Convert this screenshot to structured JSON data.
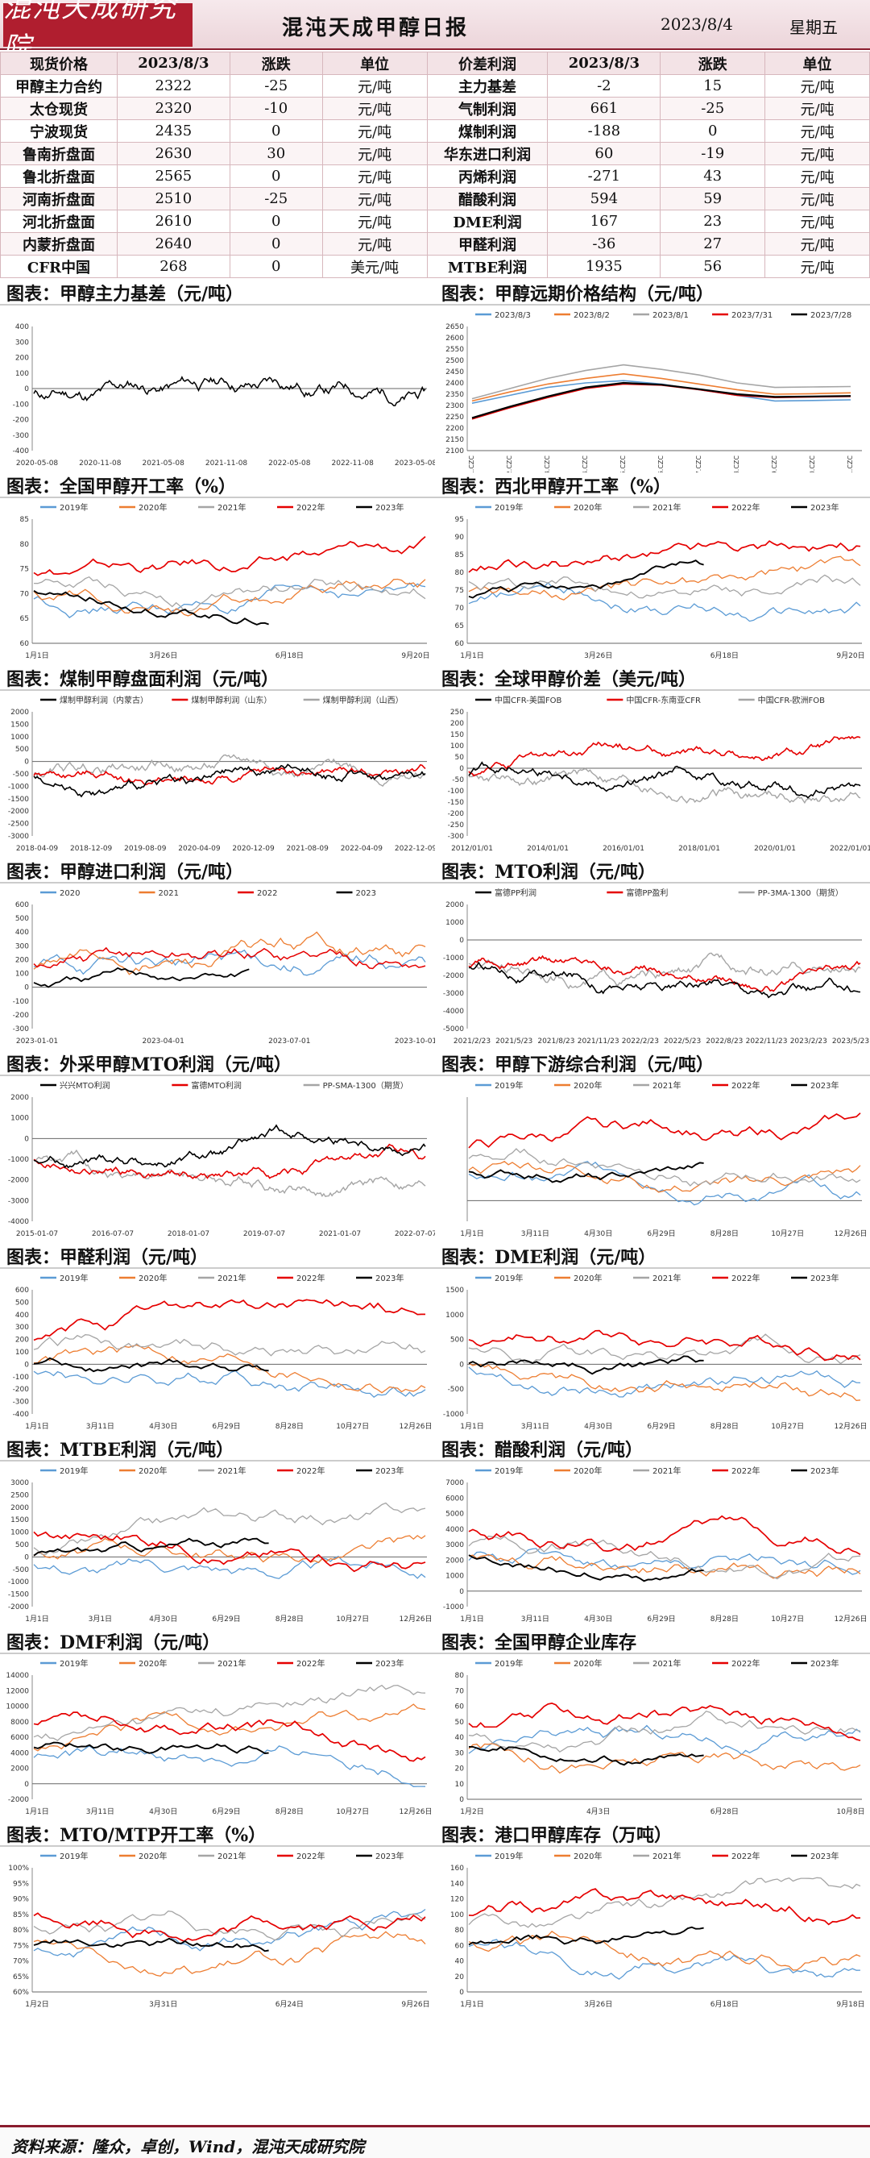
{
  "header": {
    "logo": "混沌天成研究院",
    "title": "混沌天成甲醇日报",
    "date": "2023/8/4",
    "weekday": "星期五"
  },
  "table": {
    "headers": [
      "现货价格",
      "2023/8/3",
      "涨跌",
      "单位",
      "价差利润",
      "2023/8/3",
      "涨跌",
      "单位"
    ],
    "rows": [
      [
        "甲醇主力合约",
        "2322",
        "-25",
        "元/吨",
        "主力基差",
        "-2",
        "15",
        "元/吨"
      ],
      [
        "太仓现货",
        "2320",
        "-10",
        "元/吨",
        "气制利润",
        "661",
        "-25",
        "元/吨"
      ],
      [
        "宁波现货",
        "2435",
        "0",
        "元/吨",
        "煤制利润",
        "-188",
        "0",
        "元/吨"
      ],
      [
        "鲁南折盘面",
        "2630",
        "30",
        "元/吨",
        "华东进口利润",
        "60",
        "-19",
        "元/吨"
      ],
      [
        "鲁北折盘面",
        "2565",
        "0",
        "元/吨",
        "丙烯利润",
        "-271",
        "43",
        "元/吨"
      ],
      [
        "河南折盘面",
        "2510",
        "-25",
        "元/吨",
        "醋酸利润",
        "594",
        "59",
        "元/吨"
      ],
      [
        "河北折盘面",
        "2610",
        "0",
        "元/吨",
        "DME利润",
        "167",
        "23",
        "元/吨"
      ],
      [
        "内蒙折盘面",
        "2640",
        "0",
        "元/吨",
        "甲醛利润",
        "-36",
        "27",
        "元/吨"
      ],
      [
        "CFR中国",
        "268",
        "0",
        "美元/吨",
        "MTBE利润",
        "1935",
        "56",
        "元/吨"
      ]
    ]
  },
  "colors": {
    "c2019": "#5b9bd5",
    "c2020": "#ed7d31",
    "c2021": "#a5a5a5",
    "c2022": "#e50000",
    "c2023": "#000000"
  },
  "year_legend": [
    "2019年",
    "2020年",
    "2021年",
    "2022年",
    "2023年"
  ],
  "panels": [
    {
      "title": "图表：甲醇主力基差（元/吨）",
      "type": "single",
      "legend": [],
      "ylim": [
        -400,
        400
      ],
      "yticks": [
        "400",
        "300",
        "200",
        "100",
        "0",
        "-100",
        "-200",
        "-300",
        "-400"
      ],
      "xticks": [
        "2020-05-08",
        "2020-11-08",
        "2021-05-08",
        "2021-11-08",
        "2022-05-08",
        "2022-11-08",
        "2023-05-08"
      ]
    },
    {
      "title": "图表：甲醇远期价格结构（元/吨）",
      "type": "curve",
      "legend": [
        "2023/8/3",
        "2023/8/2",
        "2023/8/1",
        "2023/7/31",
        "2023/7/28"
      ],
      "ylim": [
        2100,
        2650
      ],
      "yticks": [
        "2650",
        "2600",
        "2550",
        "2500",
        "2450",
        "2400",
        "2350",
        "2300",
        "2250",
        "2200",
        "2150",
        "2100"
      ],
      "xticks": [
        "MA01.CZC",
        "MA02.CZC",
        "MA03.CZC",
        "MA04.CZC",
        "MA05.CZC",
        "MA06.CZC",
        "MA07.CZC",
        "MA08.CZC",
        "MA09.CZC",
        "MA10.CZC",
        "MA11.CZC"
      ],
      "chart_data": {
        "type": "line",
        "categories": [
          "MA01.CZC",
          "MA02.CZC",
          "MA03.CZC",
          "MA04.CZC",
          "MA05.CZC",
          "MA06.CZC",
          "MA07.CZC",
          "MA08.CZC",
          "MA09.CZC",
          "MA10.CZC",
          "MA11.CZC"
        ],
        "series": [
          {
            "name": "2023/8/3",
            "values": [
              2310,
              2345,
              2380,
              2400,
              2410,
              2395,
              2370,
              2345,
              2320,
              2322,
              2325
            ]
          },
          {
            "name": "2023/8/2",
            "values": [
              2320,
              2360,
              2395,
              2420,
              2440,
              2420,
              2395,
              2370,
              2350,
              2352,
              2356
            ]
          },
          {
            "name": "2023/8/1",
            "values": [
              2330,
              2375,
              2420,
              2455,
              2480,
              2460,
              2435,
              2400,
              2380,
              2382,
              2384
            ]
          },
          {
            "name": "2023/7/31",
            "values": [
              2240,
              2290,
              2335,
              2375,
              2395,
              2390,
              2370,
              2345,
              2335,
              2338,
              2340
            ]
          },
          {
            "name": "2023/7/28",
            "values": [
              2245,
              2295,
              2340,
              2380,
              2400,
              2392,
              2372,
              2350,
              2338,
              2340,
              2342
            ]
          }
        ]
      }
    },
    {
      "title": "图表：全国甲醇开工率（%）",
      "type": "years",
      "ylim": [
        60,
        85
      ],
      "yticks": [
        "85",
        "80",
        "75",
        "70",
        "65",
        "60"
      ],
      "xticks": [
        "1月1日",
        "3月26日",
        "6月18日",
        "9月20日"
      ]
    },
    {
      "title": "图表：西北甲醇开工率（%）",
      "type": "years",
      "ylim": [
        60,
        95
      ],
      "yticks": [
        "95",
        "90",
        "85",
        "80",
        "75",
        "70",
        "65",
        "60"
      ],
      "xticks": [
        "1月1日",
        "3月26日",
        "6月18日",
        "9月20日"
      ]
    },
    {
      "title": "图表：煤制甲醇盘面利润（元/吨）",
      "type": "three",
      "legend": [
        "煤制甲醇利润（内蒙古）",
        "煤制甲醇利润（山东）",
        "煤制甲醇利润（山西）"
      ],
      "ylim": [
        -3000,
        2000
      ],
      "yticks": [
        "2000",
        "1500",
        "1000",
        "500",
        "0",
        "-500",
        "-1000",
        "-1500",
        "-2000",
        "-2500",
        "-3000"
      ],
      "xticks": [
        "2018-04-09",
        "2018-12-09",
        "2019-08-09",
        "2020-04-09",
        "2020-12-09",
        "2021-08-09",
        "2022-04-09",
        "2022-12-09"
      ]
    },
    {
      "title": "图表：全球甲醇价差（美元/吨）",
      "type": "three",
      "legend": [
        "中国CFR-美国FOB",
        "中国CFR-东南亚CFR",
        "中国CFR-欧洲FOB"
      ],
      "ylim": [
        -300,
        250
      ],
      "yticks": [
        "250",
        "200",
        "150",
        "100",
        "50",
        "0",
        "-50",
        "-100",
        "-150",
        "-200",
        "-250",
        "-300"
      ],
      "xticks": [
        "2012/01/01",
        "2014/01/01",
        "2016/01/01",
        "2018/01/01",
        "2020/01/01",
        "2022/01/01"
      ]
    },
    {
      "title": "图表：甲醇进口利润（元/吨）",
      "type": "fouryears",
      "legend": [
        "2020",
        "2021",
        "2022",
        "2023"
      ],
      "ylim": [
        -300,
        600
      ],
      "yticks": [
        "600",
        "500",
        "400",
        "300",
        "200",
        "100",
        "0",
        "-100",
        "-200",
        "-300"
      ],
      "xticks": [
        "2023-01-01",
        "2023-04-01",
        "2023-07-01",
        "2023-10-01"
      ]
    },
    {
      "title": "图表：MTO利润（元/吨）",
      "type": "three",
      "legend": [
        "富德PP利润",
        "富德PP盈利",
        "PP-3MA-1300（期货）"
      ],
      "ylim": [
        -5000,
        2000
      ],
      "yticks": [
        "2000",
        "1000",
        "0",
        "-1000",
        "-2000",
        "-3000",
        "-4000",
        "-5000"
      ],
      "xticks": [
        "2021/2/23",
        "2021/5/23",
        "2021/8/23",
        "2021/11/23",
        "2022/2/23",
        "2022/5/23",
        "2022/8/23",
        "2022/11/23",
        "2023/2/23",
        "2023/5/23"
      ]
    },
    {
      "title": "图表：外采甲醇MTO利润（元/吨）",
      "type": "three",
      "legend": [
        "兴兴MTO利润",
        "富德MTO利润",
        "PP-SMA-1300（期货）"
      ],
      "ylim": [
        -4000,
        2000
      ],
      "yticks": [
        "2000",
        "1000",
        "0",
        "-1000",
        "-2000",
        "-3000",
        "-4000"
      ],
      "xticks": [
        "2015-01-07",
        "2016-07-07",
        "2018-01-07",
        "2019-07-07",
        "2021-01-07",
        "2022-07-07"
      ]
    },
    {
      "title": "图表：甲醇下游综合利润（元/吨）",
      "type": "years",
      "ylim": [
        -100,
        500
      ],
      "yticks": [],
      "xticks": [
        "1月1日",
        "3月11日",
        "4月30日",
        "6月29日",
        "8月28日",
        "10月27日",
        "12月26日"
      ]
    },
    {
      "title": "图表：甲醛利润（元/吨）",
      "type": "years",
      "ylim": [
        -400,
        600
      ],
      "yticks": [
        "600",
        "500",
        "400",
        "300",
        "200",
        "100",
        "0",
        "-100",
        "-200",
        "-300",
        "-400"
      ],
      "xticks": [
        "1月1日",
        "3月11日",
        "4月30日",
        "6月29日",
        "8月28日",
        "10月27日",
        "12月26日"
      ]
    },
    {
      "title": "图表：DME利润（元/吨）",
      "type": "years",
      "ylim": [
        -1000,
        1500
      ],
      "yticks": [
        "1500",
        "1000",
        "500",
        "0",
        "-500",
        "-1000"
      ],
      "xticks": [
        "1月1日",
        "3月11日",
        "4月30日",
        "6月29日",
        "8月28日",
        "10月27日",
        "12月26日"
      ]
    },
    {
      "title": "图表：MTBE利润（元/吨）",
      "type": "years",
      "ylim": [
        -2000,
        3000
      ],
      "yticks": [
        "3000",
        "2500",
        "2000",
        "1500",
        "1000",
        "500",
        "0",
        "-500",
        "-1000",
        "-1500",
        "-2000"
      ],
      "xticks": [
        "1月1日",
        "3月1日",
        "4月30日",
        "6月29日",
        "8月28日",
        "10月27日",
        "12月26日"
      ]
    },
    {
      "title": "图表：醋酸利润（元/吨）",
      "type": "years",
      "ylim": [
        -1000,
        7000
      ],
      "yticks": [
        "7000",
        "6000",
        "5000",
        "4000",
        "3000",
        "2000",
        "1000",
        "0",
        "-1000"
      ],
      "xticks": [
        "1月1日",
        "3月11日",
        "4月30日",
        "6月29日",
        "8月28日",
        "10月27日",
        "12月26日"
      ]
    },
    {
      "title": "图表：DMF利润（元/吨）",
      "type": "years",
      "ylim": [
        -2000,
        14000
      ],
      "yticks": [
        "14000",
        "12000",
        "10000",
        "8000",
        "6000",
        "4000",
        "2000",
        "0",
        "-2000"
      ],
      "xticks": [
        "1月1日",
        "3月11日",
        "4月30日",
        "6月29日",
        "8月28日",
        "10月27日",
        "12月26日"
      ]
    },
    {
      "title": "图表：全国甲醇企业库存",
      "type": "years",
      "ylim": [
        0,
        80
      ],
      "yticks": [
        "80",
        "70",
        "60",
        "50",
        "40",
        "30",
        "20",
        "10",
        "0"
      ],
      "xticks": [
        "1月2日",
        "4月3日",
        "6月28日",
        "10月8日"
      ]
    },
    {
      "title": "图表：MTO/MTP开工率（%）",
      "type": "years",
      "ylim": [
        60,
        100
      ],
      "yticks": [
        "100%",
        "95%",
        "90%",
        "85%",
        "80%",
        "75%",
        "70%",
        "65%",
        "60%"
      ],
      "xticks": [
        "1月2日",
        "3月31日",
        "6月24日",
        "9月26日"
      ]
    },
    {
      "title": "图表：港口甲醇库存（万吨）",
      "type": "years",
      "ylim": [
        0,
        160
      ],
      "yticks": [
        "160",
        "140",
        "120",
        "100",
        "80",
        "60",
        "40",
        "20",
        "0"
      ],
      "xticks": [
        "1月1日",
        "3月26日",
        "6月18日",
        "9月18日"
      ]
    }
  ],
  "footer": "资料来源：隆众，卓创，Wind，混沌天成研究院"
}
